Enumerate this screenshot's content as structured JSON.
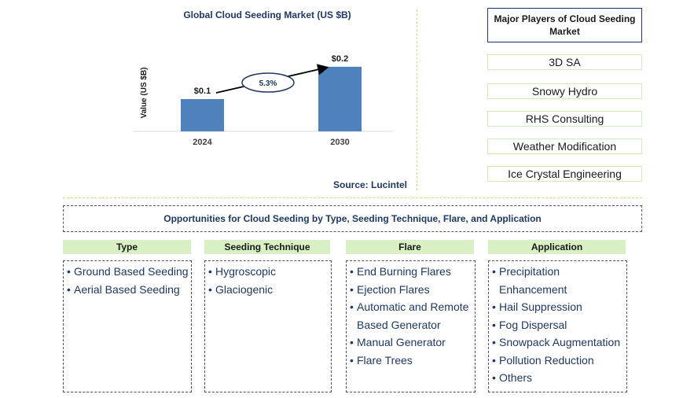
{
  "chart_data": {
    "type": "bar",
    "title": "Global Cloud Seeding Market (US $B)",
    "ylabel": "Value (US $B)",
    "xlabel": "",
    "categories": [
      "2024",
      "2030"
    ],
    "values": [
      0.1,
      0.2
    ],
    "data_labels": [
      "$0.1",
      "$0.2"
    ],
    "ylim": [
      0,
      0.28
    ],
    "bar_color": "#4f81bd",
    "cagr_label": "5.3%",
    "grid": false,
    "source": "Source: Lucintel"
  },
  "players": {
    "title": "Major Players of Cloud Seeding Market",
    "items": [
      "3D SA",
      "Snowy Hydro",
      "RHS Consulting",
      "Weather Modification",
      "Ice Crystal Engineering"
    ]
  },
  "opportunities": {
    "title": "Opportunities for Cloud Seeding by Type, Seeding Technique, Flare, and Application",
    "columns": [
      {
        "heading": "Type",
        "items": [
          "Ground Based Seeding",
          "Aerial Based Seeding"
        ]
      },
      {
        "heading": "Seeding Technique",
        "items": [
          "Hygroscopic",
          "Glaciogenic"
        ]
      },
      {
        "heading": "Flare",
        "items": [
          "End Burning Flares",
          "Ejection Flares",
          "Automatic and Remote Based Generator",
          "Manual Generator",
          "Flare Trees"
        ]
      },
      {
        "heading": "Application",
        "items": [
          "Precipitation Enhancement",
          "Hail Suppression",
          "Fog Dispersal",
          "Snowpack Augmentation",
          "Pollution Reduction",
          "Others"
        ]
      }
    ]
  }
}
